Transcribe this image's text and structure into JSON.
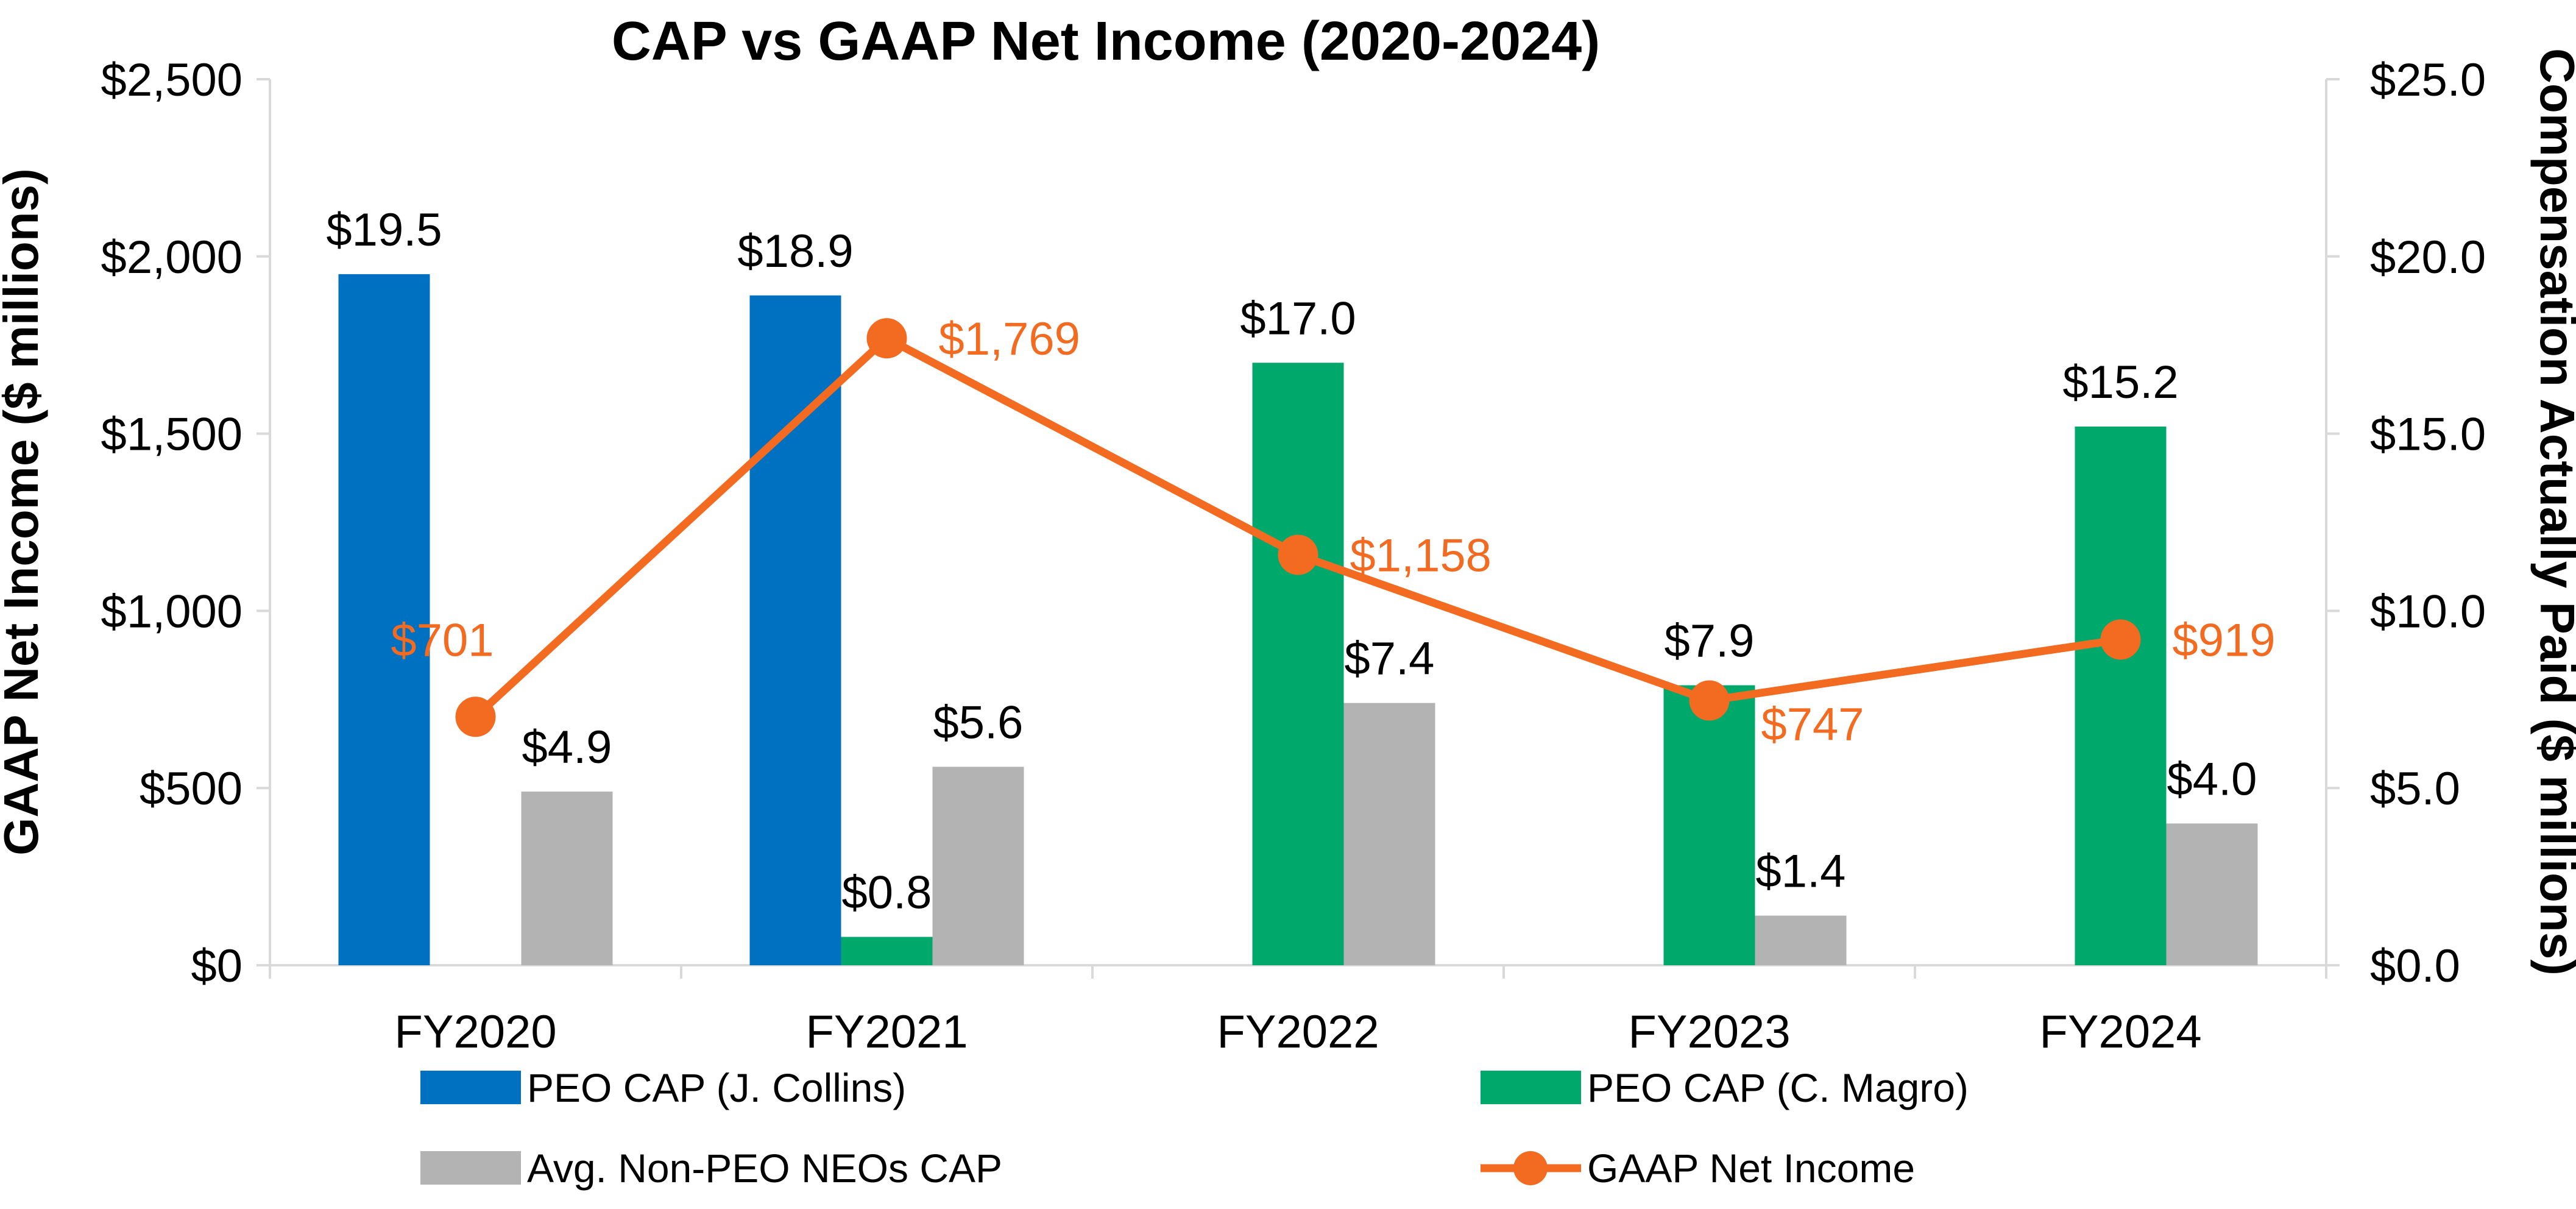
{
  "chart_data": {
    "type": "bar",
    "title": "CAP vs GAAP Net Income (2020-2024)",
    "categories": [
      "FY2020",
      "FY2021",
      "FY2022",
      "FY2023",
      "FY2024"
    ],
    "y_left": {
      "label": "GAAP Net Income ($ millions)",
      "range": [
        0,
        2500
      ],
      "ticks": [
        0,
        500,
        1000,
        1500,
        2000,
        2500
      ],
      "tick_labels": [
        "$0",
        "$500",
        "$1,000",
        "$1,500",
        "$2,000",
        "$2,500"
      ]
    },
    "y_right": {
      "label": "Compensation Actually Paid ($ millions)",
      "range": [
        0,
        25
      ],
      "ticks": [
        0,
        5,
        10,
        15,
        20,
        25
      ],
      "tick_labels": [
        "$0.0",
        "$5.0",
        "$10.0",
        "$15.0",
        "$20.0",
        "$25.0"
      ]
    },
    "series": [
      {
        "name": "PEO CAP (J. Collins)",
        "kind": "bar",
        "axis": "right",
        "slot": 0,
        "color": "#0070C0",
        "values": [
          19.5,
          18.9,
          null,
          null,
          null
        ],
        "labels": [
          "$19.5",
          "$18.9",
          null,
          null,
          null
        ]
      },
      {
        "name": "PEO CAP (C. Magro)",
        "kind": "bar",
        "axis": "right",
        "slot": 1,
        "color": "#00A86B",
        "values": [
          null,
          0.8,
          17.0,
          7.9,
          15.2
        ],
        "labels": [
          null,
          "$0.8",
          "$17.0",
          "$7.9",
          "$15.2"
        ]
      },
      {
        "name": "Avg. Non-PEO NEOs CAP",
        "kind": "bar",
        "axis": "right",
        "slot": 2,
        "color": "#B3B3B3",
        "values": [
          4.9,
          5.6,
          7.4,
          1.4,
          4.0
        ],
        "labels": [
          "$4.9",
          "$5.6",
          "$7.4",
          "$1.4",
          "$4.0"
        ]
      },
      {
        "name": "GAAP Net Income",
        "kind": "line",
        "axis": "left",
        "color": "#F26B21",
        "values": [
          701,
          1769,
          1158,
          747,
          919
        ],
        "labels": [
          "$701",
          "$1,769",
          "$1,158",
          "$747",
          "$919"
        ]
      }
    ],
    "legend": {
      "position": "bottom",
      "order": [
        "PEO CAP (J. Collins)",
        "PEO CAP (C. Magro)",
        "Avg. Non-PEO NEOs CAP",
        "GAAP Net Income"
      ]
    },
    "colors": {
      "axis": "#D9D9D9",
      "text": "#000000"
    }
  }
}
